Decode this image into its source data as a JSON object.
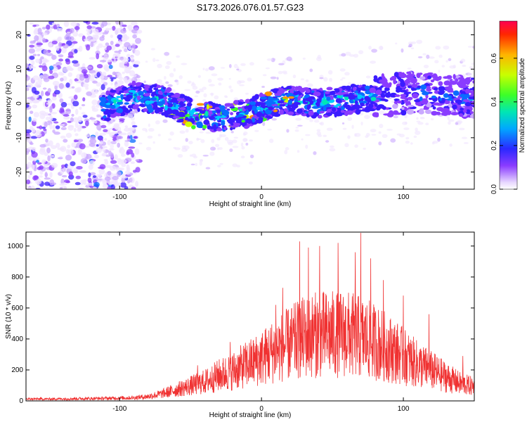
{
  "title": "S173.2026.076.01.57.G23",
  "chart_data": [
    {
      "type": "heatmap",
      "panel": "spectrogram",
      "xlabel": "Height of straight line (km)",
      "ylabel": "Frequency (Hz)",
      "xlim": [
        -166,
        150
      ],
      "ylim": [
        -25,
        24
      ],
      "xticks": [
        -100,
        0,
        100
      ],
      "yticks": [
        -20,
        -10,
        0,
        10,
        20
      ],
      "grid": false,
      "signal_trace": [
        {
          "x": -110,
          "y": -1
        },
        {
          "x": -90,
          "y": 2
        },
        {
          "x": -70,
          "y": 1
        },
        {
          "x": -55,
          "y": -2
        },
        {
          "x": -40,
          "y": -4
        },
        {
          "x": -25,
          "y": -4
        },
        {
          "x": -10,
          "y": -3
        },
        {
          "x": 0,
          "y": -1
        },
        {
          "x": 10,
          "y": 0
        },
        {
          "x": 20,
          "y": 1
        },
        {
          "x": 40,
          "y": 0
        },
        {
          "x": 60,
          "y": 1
        },
        {
          "x": 80,
          "y": 2
        },
        {
          "x": 100,
          "y": 3
        },
        {
          "x": 120,
          "y": 3
        },
        {
          "x": 145,
          "y": 2
        }
      ],
      "colorbar": {
        "label": "Normalized spectral amplitude",
        "range": [
          0.0,
          0.77
        ],
        "ticks": [
          0.0,
          0.2,
          0.4,
          0.6
        ],
        "tick_labels": [
          "0.0",
          "0.2",
          "0.4",
          "0.6"
        ]
      }
    },
    {
      "type": "line",
      "panel": "snr",
      "xlabel": "Height of straight line (km)",
      "ylabel": "SNR (10 * v/v)",
      "xlim": [
        -166,
        150
      ],
      "ylim": [
        0,
        1090
      ],
      "xticks": [
        -100,
        0,
        100
      ],
      "yticks": [
        0,
        200,
        400,
        600,
        800,
        1000
      ],
      "series_color": "#f03232",
      "series": [
        {
          "name": "SNR",
          "x": [
            -166,
            -150,
            -130,
            -110,
            -90,
            -80,
            -70,
            -60,
            -50,
            -40,
            -30,
            -20,
            -10,
            0,
            10,
            20,
            30,
            40,
            50,
            60,
            70,
            80,
            90,
            100,
            110,
            120,
            130,
            140,
            150
          ],
          "mean": [
            12,
            12,
            14,
            16,
            20,
            28,
            45,
            70,
            95,
            120,
            160,
            190,
            230,
            270,
            320,
            360,
            400,
            420,
            420,
            420,
            400,
            370,
            330,
            280,
            230,
            190,
            150,
            110,
            90
          ],
          "peaks": [
            {
              "x": 27,
              "y": 1030
            },
            {
              "x": 33,
              "y": 990
            },
            {
              "x": 41,
              "y": 1000
            },
            {
              "x": 54,
              "y": 1020
            },
            {
              "x": 66,
              "y": 960
            },
            {
              "x": 70,
              "y": 1085
            },
            {
              "x": 77,
              "y": 920
            },
            {
              "x": 86,
              "y": 780
            },
            {
              "x": 10,
              "y": 620
            },
            {
              "x": 15,
              "y": 730
            },
            {
              "x": 100,
              "y": 680
            },
            {
              "x": 118,
              "y": 560
            },
            {
              "x": 142,
              "y": 290
            },
            {
              "x": -45,
              "y": 230
            },
            {
              "x": -22,
              "y": 380
            }
          ]
        }
      ]
    }
  ]
}
